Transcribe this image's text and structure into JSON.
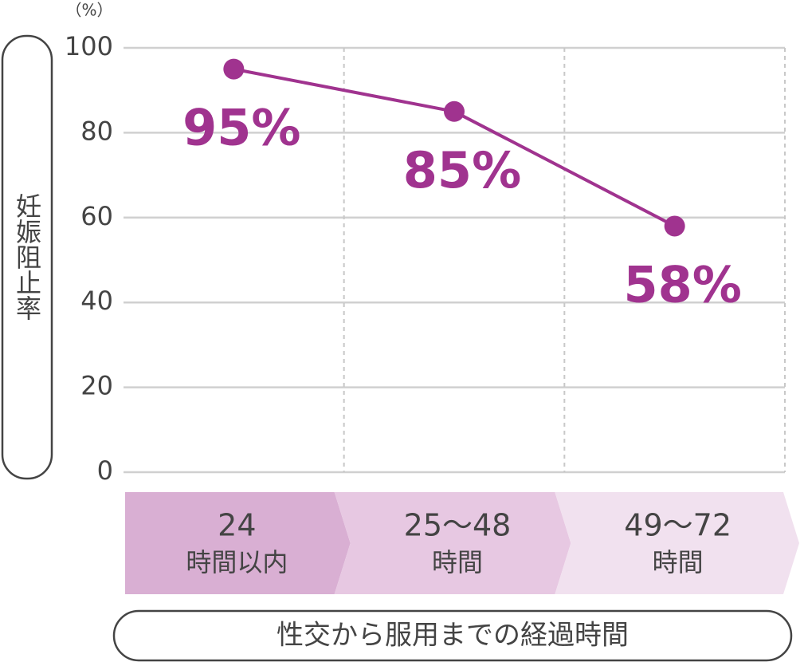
{
  "chart_data": {
    "type": "line",
    "y_unit": "（%）",
    "ylabel": "妊娠阻止率",
    "xlabel": "性交から服用までの経過時間",
    "categories": [
      [
        "24",
        "時間以内"
      ],
      [
        "25〜48",
        "時間"
      ],
      [
        "49〜72",
        "時間"
      ]
    ],
    "category_colors": [
      "#d9afd3",
      "#e7c8e2",
      "#f1e1ef"
    ],
    "values": [
      95,
      85,
      58
    ],
    "value_labels": [
      "95%",
      "85%",
      "58%"
    ],
    "color": "#a0338f",
    "ylim": [
      0,
      100
    ],
    "yticks": [
      0,
      20,
      40,
      60,
      80,
      100
    ],
    "grid": true
  }
}
